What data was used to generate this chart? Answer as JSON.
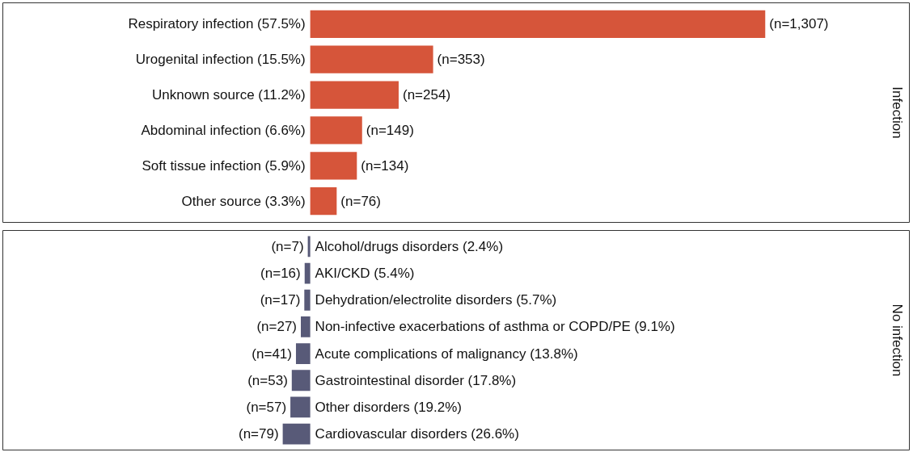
{
  "chart_data": [
    {
      "type": "bar",
      "orientation": "horizontal",
      "title": "Infection",
      "color": "#d6553a",
      "tick_labels": false,
      "xlim": [
        -883,
        1721
      ],
      "categories": [
        "Respiratory infection (57.5%)",
        "Urogenital infection (15.5%)",
        "Unknown source (11.2%)",
        "Abdominal infection (6.6%)",
        "Soft tissue infection (5.9%)",
        "Other source (3.3%)"
      ],
      "values": [
        1307,
        353,
        254,
        149,
        134,
        76
      ],
      "value_labels": [
        "(n=1,307)",
        "(n=353)",
        "(n=254)",
        "(n=149)",
        "(n=134)",
        "(n=76)"
      ]
    },
    {
      "type": "bar",
      "orientation": "horizontal",
      "title": "No infection",
      "color": "#585a78",
      "tick_labels": false,
      "xlim": [
        883,
        -1721
      ],
      "categories": [
        "Alcohol/drugs disorders (2.4%)",
        "AKI/CKD (5.4%)",
        "Dehydration/electrolite disorders (5.7%)",
        "Non-infective exacerbations of asthma or COPD/PE (9.1%)",
        "Acute complications of malignancy (13.8%)",
        "Gastrointestinal disorder (17.8%)",
        "Other disorders (19.2%)",
        "Cardiovascular disorders (26.6%)"
      ],
      "values": [
        7,
        16,
        17,
        27,
        41,
        53,
        57,
        79
      ],
      "value_labels": [
        "(n=7)",
        "(n=16)",
        "(n=17)",
        "(n=27)",
        "(n=41)",
        "(n=53)",
        "(n=57)",
        "(n=79)"
      ]
    }
  ]
}
